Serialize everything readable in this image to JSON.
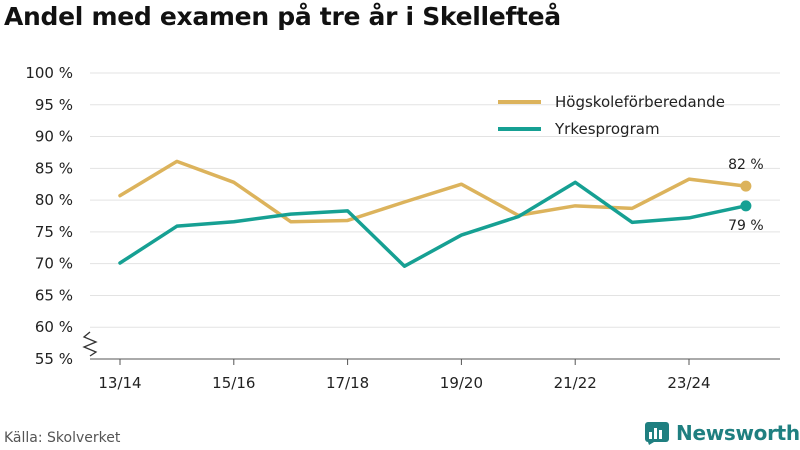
{
  "title": "Andel med examen på tre år i Skellefteå",
  "source": "Källa: Skolverket",
  "brand": {
    "name": "Newsworthy",
    "icon": "newsworthy-logo-icon",
    "color": "#1f7f80"
  },
  "chart_data": {
    "type": "line",
    "x": [
      "13/14",
      "14/15",
      "15/16",
      "16/17",
      "17/18",
      "18/19",
      "19/20",
      "20/21",
      "21/22",
      "22/23",
      "23/24",
      "24/25"
    ],
    "x_tick_labels": [
      "13/14",
      "15/16",
      "17/18",
      "19/20",
      "21/22",
      "23/24"
    ],
    "ylim": [
      55,
      100
    ],
    "y_ticks": [
      55,
      60,
      65,
      70,
      75,
      80,
      85,
      90,
      95,
      100
    ],
    "y_tick_labels": [
      "55 %",
      "60 %",
      "65 %",
      "70 %",
      "75 %",
      "80 %",
      "85 %",
      "90 %",
      "95 %",
      "100 %"
    ],
    "axis_break": true,
    "grid": true,
    "legend_position": "top-right",
    "series": [
      {
        "name": "Högskoleförberedande",
        "color": "#dcb35c",
        "values": [
          80.7,
          86.1,
          82.8,
          76.6,
          76.8,
          79.7,
          82.5,
          77.6,
          79.1,
          78.7,
          83.3,
          82.2
        ],
        "end_label": "82 %"
      },
      {
        "name": "Yrkesprogram",
        "color": "#16a093",
        "values": [
          70.1,
          75.9,
          76.6,
          77.8,
          78.3,
          69.6,
          74.5,
          77.4,
          82.8,
          76.5,
          77.2,
          79.1
        ],
        "end_label": "79 %"
      }
    ]
  }
}
